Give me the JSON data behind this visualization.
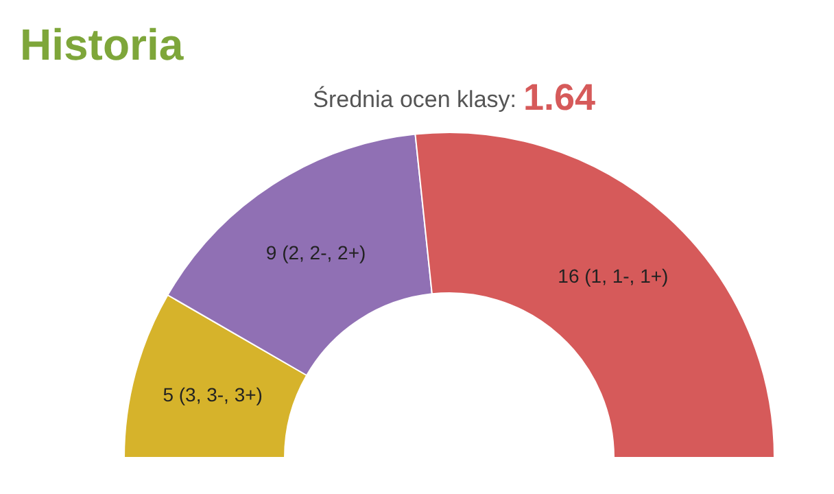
{
  "chart_data": {
    "type": "donut",
    "title": "Historia",
    "subtitle": "Średnia ocen klasy:",
    "annotations": [
      "1.64"
    ],
    "categories": [
      null,
      null,
      null
    ],
    "values": [
      5,
      9,
      16
    ],
    "value_labels": [
      "5 (3, 3-, 3+)",
      "9 (2, 2-, 2+)",
      "16 (1, 1-, 1+)"
    ],
    "colors": [
      "#d6b32b",
      "#9070b4",
      "#d65a5a"
    ]
  }
}
